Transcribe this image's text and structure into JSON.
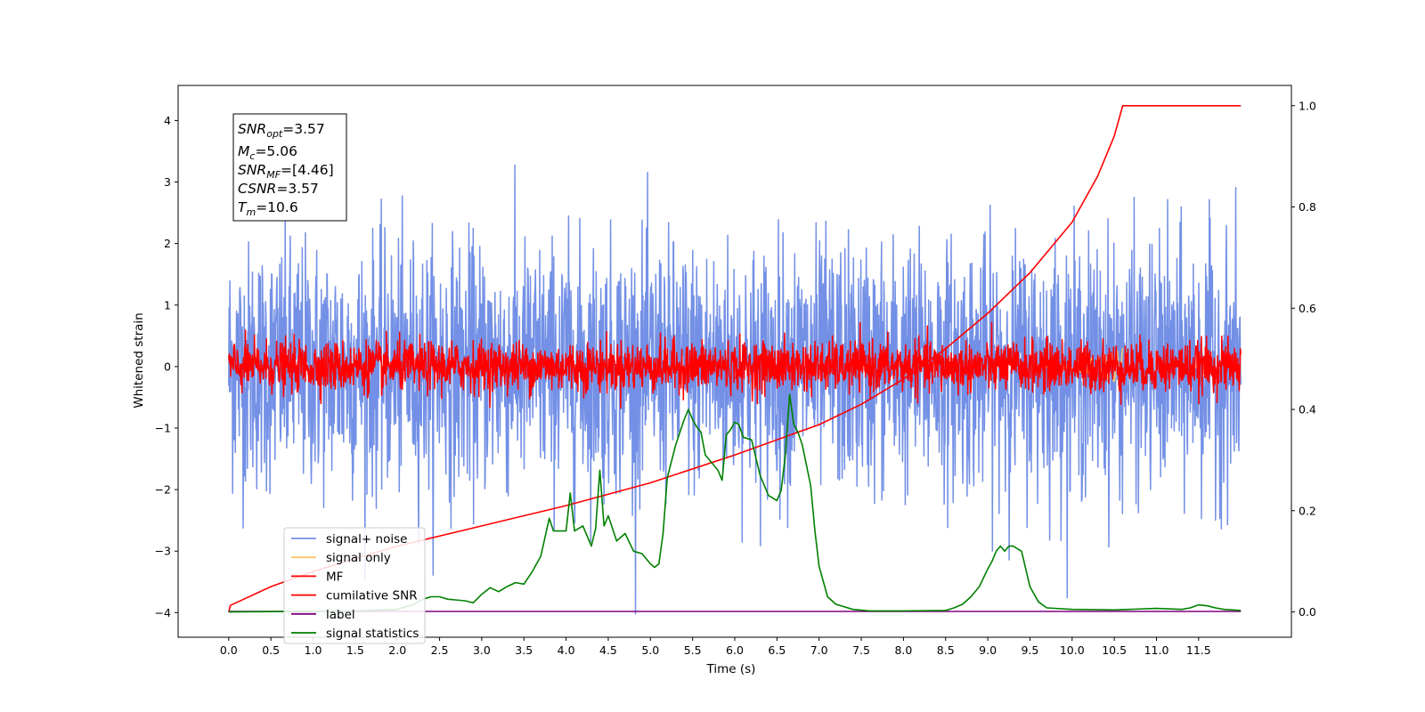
{
  "chart_data": {
    "type": "line",
    "xlabel": "Time (s)",
    "ylabel": "Whitened strain",
    "xlim": [
      -0.6,
      12.6
    ],
    "ylim": [
      -4.4,
      4.57
    ],
    "y2lim": [
      -0.05,
      1.04
    ],
    "grid": false,
    "legend_position": "lower-left",
    "x_ticks": [
      "0.0",
      "0.5",
      "1.0",
      "1.5",
      "2.0",
      "2.5",
      "3.0",
      "3.5",
      "4.0",
      "4.5",
      "5.0",
      "5.5",
      "6.0",
      "6.5",
      "7.0",
      "7.5",
      "8.0",
      "8.5",
      "9.0",
      "9.5",
      "10.0",
      "10.5",
      "11.0",
      "11.5"
    ],
    "y_ticks": [
      "4",
      "3",
      "2",
      "1",
      "0",
      "−1",
      "−2",
      "−3",
      "−4"
    ],
    "y2_ticks": [
      "1.0",
      "0.8",
      "0.6",
      "0.4",
      "0.2",
      "0.0"
    ],
    "info_box": {
      "snr_opt_label": "SNR",
      "snr_opt_sub": "opt",
      "snr_opt_value": "=3.57",
      "mc_label": "M",
      "mc_sub": "c",
      "mc_value": "=5.06",
      "snr_mf_label": "SNR",
      "snr_mf_sub": "MF",
      "snr_mf_value": "=[4.46]",
      "csnr_label": "CSNR",
      "csnr_value": "=3.57",
      "tm_label": "T",
      "tm_sub": "m",
      "tm_value": "=10.6"
    },
    "series": [
      {
        "name": "signal+ noise",
        "color": "#7390e6",
        "axis": "left",
        "kind": "noise",
        "std": 1.0,
        "x_range": [
          0,
          12.0
        ]
      },
      {
        "name": "signal only",
        "color": "#ffc66b",
        "axis": "left",
        "kind": "chirp",
        "x_range": [
          9.5,
          10.6
        ],
        "peak": 0.3
      },
      {
        "name": "MF",
        "color": "#ff0000",
        "axis": "left",
        "kind": "noise",
        "std": 0.2,
        "x_range": [
          0,
          12.0
        ]
      },
      {
        "name": "cumilative SNR",
        "color": "#ff0000",
        "axis": "right",
        "x": [
          0,
          0.02,
          0.5,
          1,
          2,
          3,
          4,
          5,
          6,
          7,
          7.5,
          8,
          8.5,
          9,
          9.5,
          10,
          10.3,
          10.5,
          10.6,
          10.62,
          12.0
        ],
        "y": [
          0,
          0.013,
          0.05,
          0.08,
          0.13,
          0.17,
          0.21,
          0.255,
          0.31,
          0.37,
          0.41,
          0.46,
          0.52,
          0.59,
          0.67,
          0.77,
          0.86,
          0.94,
          1.0,
          1.0,
          1.0
        ]
      },
      {
        "name": "label",
        "color": "#800080",
        "axis": "right",
        "x": [
          0,
          12.0
        ],
        "y": [
          0.001,
          0.001
        ]
      },
      {
        "name": "signal statistics",
        "color": "#008000",
        "axis": "right",
        "x": [
          0,
          1.5,
          2.0,
          2.2,
          2.3,
          2.4,
          2.5,
          2.6,
          2.8,
          2.9,
          3.0,
          3.1,
          3.2,
          3.3,
          3.4,
          3.5,
          3.6,
          3.7,
          3.8,
          3.85,
          3.9,
          4.0,
          4.05,
          4.1,
          4.2,
          4.3,
          4.35,
          4.4,
          4.45,
          4.5,
          4.6,
          4.7,
          4.8,
          4.9,
          5.0,
          5.05,
          5.1,
          5.15,
          5.2,
          5.3,
          5.4,
          5.45,
          5.5,
          5.55,
          5.6,
          5.65,
          5.7,
          5.8,
          5.85,
          5.9,
          5.95,
          6.0,
          6.05,
          6.1,
          6.2,
          6.3,
          6.4,
          6.5,
          6.55,
          6.6,
          6.65,
          6.7,
          6.75,
          6.8,
          6.9,
          6.95,
          7.0,
          7.1,
          7.2,
          7.4,
          7.6,
          8.0,
          8.5,
          8.6,
          8.7,
          8.8,
          8.9,
          9.0,
          9.05,
          9.1,
          9.15,
          9.2,
          9.25,
          9.3,
          9.35,
          9.4,
          9.5,
          9.6,
          9.7,
          10.0,
          10.5,
          11.0,
          11.3,
          11.4,
          11.5,
          11.6,
          11.7,
          11.8,
          12.0
        ],
        "y": [
          0.0,
          0.002,
          0.005,
          0.015,
          0.025,
          0.03,
          0.03,
          0.025,
          0.022,
          0.018,
          0.035,
          0.048,
          0.04,
          0.05,
          0.058,
          0.055,
          0.08,
          0.11,
          0.185,
          0.16,
          0.16,
          0.16,
          0.235,
          0.16,
          0.17,
          0.13,
          0.165,
          0.28,
          0.17,
          0.19,
          0.14,
          0.155,
          0.12,
          0.115,
          0.095,
          0.088,
          0.095,
          0.155,
          0.265,
          0.33,
          0.38,
          0.4,
          0.38,
          0.365,
          0.355,
          0.31,
          0.3,
          0.28,
          0.26,
          0.35,
          0.36,
          0.375,
          0.37,
          0.345,
          0.34,
          0.27,
          0.23,
          0.22,
          0.24,
          0.31,
          0.43,
          0.37,
          0.355,
          0.33,
          0.25,
          0.16,
          0.09,
          0.03,
          0.015,
          0.005,
          0.002,
          0.002,
          0.003,
          0.008,
          0.015,
          0.03,
          0.05,
          0.085,
          0.1,
          0.12,
          0.13,
          0.12,
          0.13,
          0.13,
          0.125,
          0.12,
          0.05,
          0.02,
          0.008,
          0.005,
          0.004,
          0.007,
          0.005,
          0.008,
          0.014,
          0.012,
          0.008,
          0.005,
          0.003
        ]
      }
    ]
  }
}
